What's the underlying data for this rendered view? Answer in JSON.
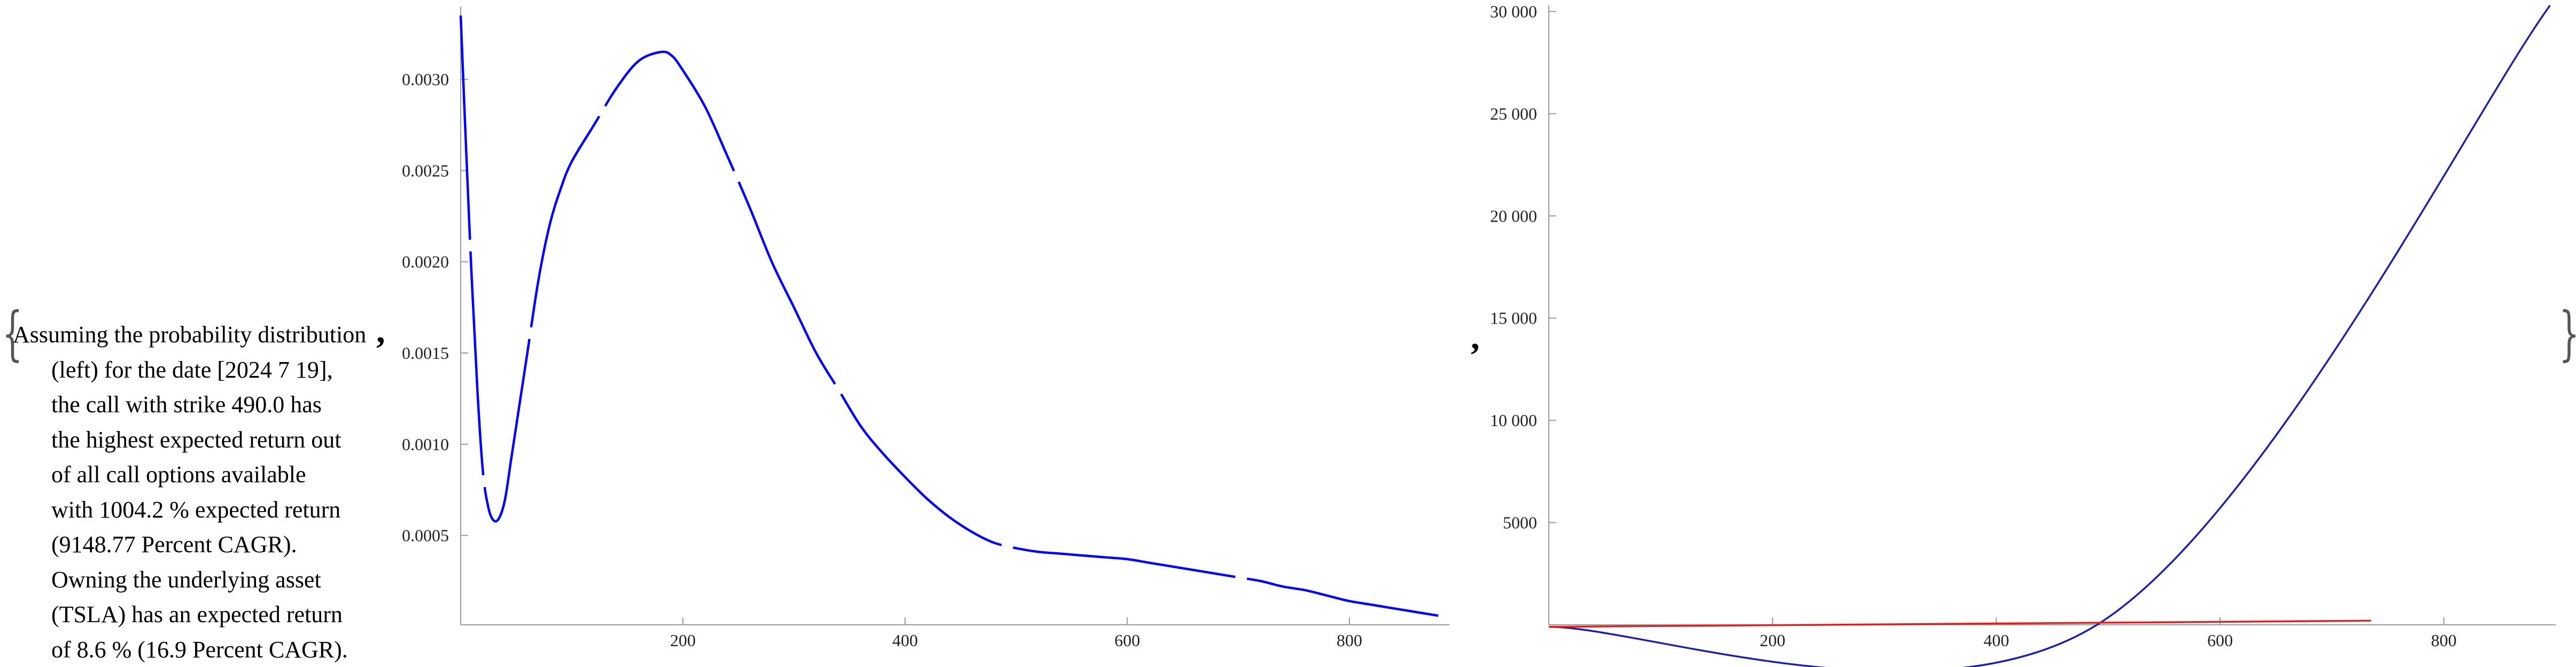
{
  "description": {
    "lines": [
      "Assuming the probability distribution",
      "(left) for the date [2024 7 19],",
      "the call with strike 490.0 has",
      "the highest expected return out",
      "of all call options available",
      "with 1004.2 % expected return",
      "(9148.77 Percent CAGR).",
      "Owning the underlying asset",
      "(TSLA) has an expected return",
      "of 8.6 % (16.9 Percent CAGR)."
    ]
  },
  "punctuation": {
    "brace_open": "{",
    "brace_close": "}",
    "comma": ","
  },
  "chart_data": [
    {
      "type": "line",
      "title": "",
      "xlabel": "",
      "ylabel": "",
      "xlim": [
        0,
        890
      ],
      "ylim": [
        1e-05,
        0.0034
      ],
      "grid": false,
      "x_ticks": [
        200,
        400,
        600,
        800
      ],
      "y_ticks": [
        0.0005,
        0.001,
        0.0015,
        0.002,
        0.0025,
        0.003
      ],
      "y_tick_labels": [
        "0.0005",
        "0.0010",
        "0.0015",
        "0.0020",
        "0.0025",
        "0.0030"
      ],
      "series": [
        {
          "color": "#0000ff",
          "x": [
            0,
            5,
            10,
            15,
            20,
            25,
            30,
            35,
            40,
            45,
            50,
            60,
            70,
            80,
            90,
            100,
            120,
            140,
            160,
            180,
            190,
            200,
            220,
            240,
            260,
            280,
            300,
            320,
            340,
            360,
            380,
            400,
            420,
            440,
            460,
            480,
            500,
            520,
            540,
            560,
            580,
            600,
            620,
            640,
            660,
            680,
            700,
            720,
            740,
            760,
            780,
            800,
            820,
            840,
            860,
            880
          ],
          "y": [
            0.00335,
            0.0026,
            0.0019,
            0.0013,
            0.00085,
            0.00065,
            0.00058,
            0.0006,
            0.0007,
            0.0009,
            0.0011,
            0.0015,
            0.0019,
            0.0022,
            0.0024,
            0.00255,
            0.00275,
            0.00295,
            0.0031,
            0.00315,
            0.00313,
            0.00305,
            0.00285,
            0.00258,
            0.0023,
            0.002,
            0.00175,
            0.0015,
            0.0013,
            0.0011,
            0.00095,
            0.00082,
            0.0007,
            0.0006,
            0.00052,
            0.00046,
            0.00043,
            0.00041,
            0.0004,
            0.00039,
            0.00038,
            0.00037,
            0.00035,
            0.00033,
            0.00031,
            0.00029,
            0.00027,
            0.00025,
            0.00022,
            0.0002,
            0.00017,
            0.00014,
            0.00012,
            0.0001,
            8e-05,
            6e-05
          ]
        }
      ]
    },
    {
      "type": "line",
      "title": "",
      "xlabel": "",
      "ylabel": "",
      "xlim": [
        0,
        900
      ],
      "ylim": [
        0,
        30300
      ],
      "grid": false,
      "x_ticks": [
        200,
        400,
        600,
        800
      ],
      "y_ticks": [
        5000,
        10000,
        15000,
        20000,
        25000,
        30000
      ],
      "y_tick_labels": [
        "5000",
        "10 000",
        "15 000",
        "20 000",
        "25 000",
        "30 000"
      ],
      "series": [
        {
          "color": "#1f1fa8",
          "x": [
            0,
            490,
            895
          ],
          "y": [
            -100,
            0,
            30300
          ]
        },
        {
          "color": "#e02020",
          "x": [
            0,
            735
          ],
          "y": [
            -100,
            200
          ]
        }
      ]
    }
  ]
}
